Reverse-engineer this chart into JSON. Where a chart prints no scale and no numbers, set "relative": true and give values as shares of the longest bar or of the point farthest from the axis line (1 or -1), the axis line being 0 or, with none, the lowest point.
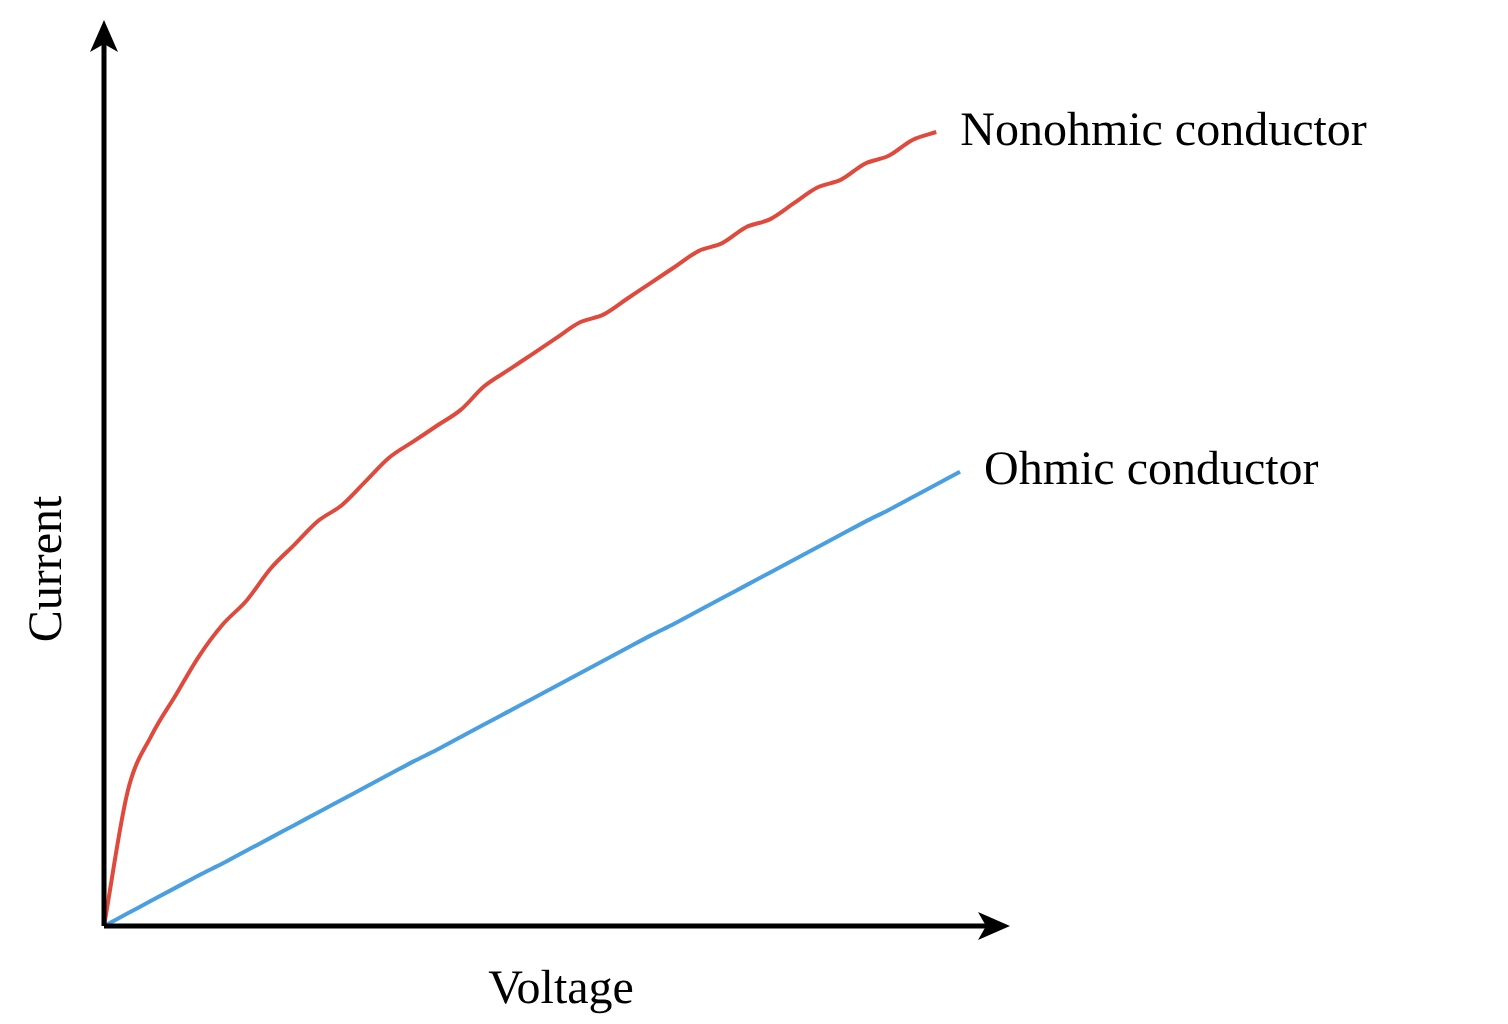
{
  "chart_data": {
    "type": "line",
    "relative": true,
    "xlabel": "Voltage",
    "ylabel": "Current",
    "marker": "none",
    "categories": [
      null,
      null,
      null,
      null,
      null,
      null,
      null,
      null,
      null,
      null,
      null,
      null,
      null,
      null,
      null,
      null,
      null,
      null,
      null,
      null,
      null,
      null,
      null,
      null,
      null,
      null,
      null,
      null,
      null,
      null,
      null,
      null,
      null,
      null,
      null,
      null,
      null
    ],
    "series": [
      {
        "name": "Nonohmic conductor",
        "color": "#e04a3c",
        "values": [
          0,
          0.17,
          0.24,
          0.29,
          0.34,
          0.38,
          0.41,
          0.45,
          0.48,
          0.51,
          0.53,
          0.56,
          0.59,
          0.61,
          0.63,
          0.65,
          0.68,
          0.7,
          0.72,
          0.74,
          0.76,
          0.77,
          0.79,
          0.81,
          0.83,
          0.85,
          0.86,
          0.88,
          0.89,
          0.91,
          0.93,
          0.94,
          0.96,
          0.97,
          0.99,
          1,
          null
        ]
      },
      {
        "name": "Ohmic conductor",
        "color": "#4a9fe0",
        "values": [
          0,
          0.016,
          0.032,
          0.048,
          0.064,
          0.079,
          0.095,
          0.111,
          0.127,
          0.143,
          0.159,
          0.175,
          0.191,
          0.207,
          0.222,
          0.238,
          0.254,
          0.27,
          0.286,
          0.302,
          0.318,
          0.334,
          0.35,
          0.366,
          0.381,
          0.397,
          0.413,
          0.429,
          0.445,
          0.461,
          0.477,
          0.493,
          0.509,
          0.524,
          0.54,
          0.556,
          0.572
        ]
      }
    ]
  }
}
